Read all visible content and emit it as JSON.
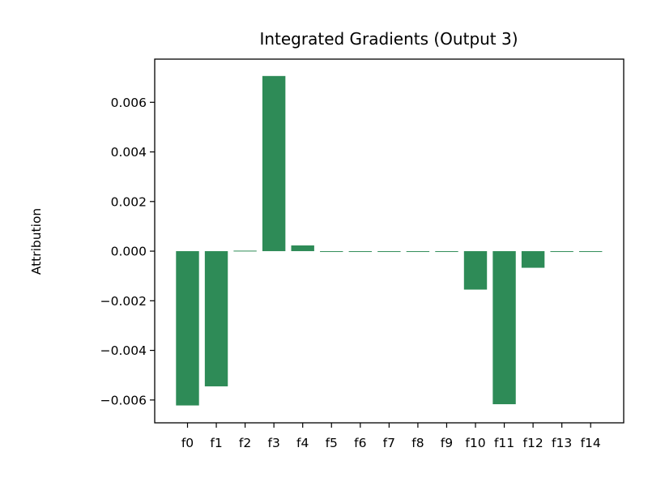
{
  "chart_data": {
    "type": "bar",
    "title": "Integrated Gradients (Output 3)",
    "xlabel": "",
    "ylabel": "Attribution",
    "categories": [
      "f0",
      "f1",
      "f2",
      "f3",
      "f4",
      "f5",
      "f6",
      "f7",
      "f8",
      "f9",
      "f10",
      "f11",
      "f12",
      "f13",
      "f14"
    ],
    "values": [
      -0.00622,
      -0.00545,
      2e-05,
      0.00706,
      0.00023,
      0,
      0,
      0,
      0,
      0,
      -0.00155,
      -0.00617,
      -0.00067,
      -1e-05,
      0
    ],
    "ylim": [
      -0.00692,
      0.00774
    ],
    "yticks": [
      -0.006,
      -0.004,
      -0.002,
      0.0,
      0.002,
      0.004,
      0.006
    ],
    "ytick_labels": [
      "−0.006",
      "−0.004",
      "−0.002",
      "0.000",
      "0.002",
      "0.004",
      "0.006"
    ],
    "bar_color": "#2e8b57",
    "grid": false,
    "legend": "none"
  }
}
